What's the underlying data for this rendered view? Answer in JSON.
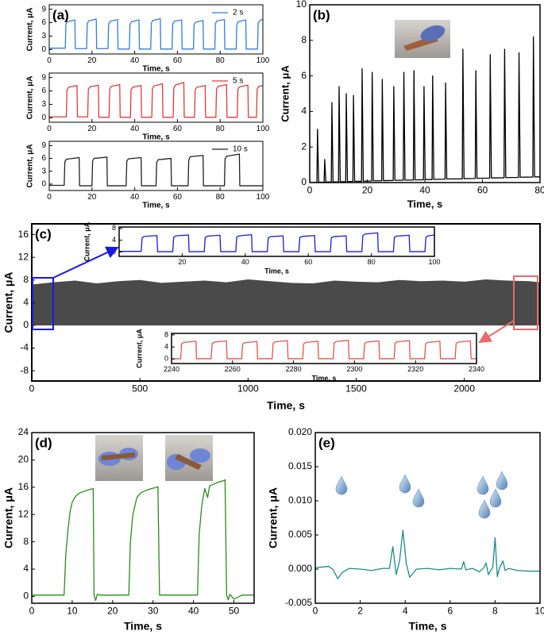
{
  "chart_data": [
    {
      "type": "line",
      "panel": "(a)",
      "xlabel": "Time, s",
      "ylabel": "Current, μA",
      "xlim": [
        0,
        100
      ],
      "ylim": [
        -1,
        10
      ],
      "xticks": [
        0,
        20,
        40,
        60,
        80,
        100
      ],
      "yticks": [
        0,
        3,
        6,
        9
      ],
      "legend": "upper right",
      "series": [
        {
          "name": "2 s",
          "color": "#2f7ed8",
          "x": [
            0,
            7.5,
            7.8,
            8.5,
            12,
            12.2,
            17.5,
            17.8,
            18.5,
            22,
            22.2,
            27.5,
            27.8,
            28.5,
            32,
            32.2,
            37.5,
            37.8,
            38.5,
            42,
            42.2,
            47.5,
            47.8,
            48.5,
            52,
            52.2,
            57.5,
            57.8,
            58.5,
            62,
            62.2,
            67.5,
            67.8,
            68.5,
            72,
            72.2,
            77.5,
            77.8,
            78.5,
            82,
            82.2,
            87.5,
            87.8,
            88.5,
            92,
            92.2,
            97.5,
            97.8,
            98.5,
            100
          ],
          "values": [
            0.3,
            0.3,
            5.6,
            6.2,
            6.6,
            0.2,
            0.2,
            5.8,
            6.4,
            6.8,
            0.2,
            0.2,
            5.7,
            6.3,
            6.7,
            0.1,
            0.1,
            5.6,
            6.2,
            6.6,
            0.1,
            0.1,
            5.9,
            6.5,
            6.9,
            0.1,
            0.1,
            5.7,
            6.3,
            6.6,
            0.1,
            0.1,
            5.5,
            6.1,
            6.5,
            0.1,
            0.1,
            5.8,
            6.4,
            6.7,
            0.1,
            0.1,
            5.6,
            6.2,
            6.6,
            0.1,
            0.1,
            5.9,
            6.4,
            6.8
          ]
        }
      ]
    },
    {
      "type": "line",
      "xlabel": "Time, s",
      "ylabel": "Current, μA",
      "xlim": [
        0,
        100
      ],
      "ylim": [
        -1,
        10
      ],
      "xticks": [
        0,
        20,
        40,
        60,
        80,
        100
      ],
      "yticks": [
        0,
        3,
        6,
        9
      ],
      "legend": "upper right",
      "series": [
        {
          "name": "5 s",
          "color": "#e0393e",
          "x": [
            0,
            8,
            8.3,
            9,
            13,
            13.2,
            18,
            18.3,
            19,
            23,
            23.2,
            28,
            28.3,
            29,
            33,
            33.2,
            38,
            38.3,
            39,
            43,
            43.2,
            48,
            48.3,
            49,
            53,
            53.2,
            58,
            58.3,
            59,
            63,
            63.2,
            68,
            68.3,
            69,
            73,
            73.2,
            78,
            78.3,
            79,
            83,
            83.2,
            88,
            88.3,
            89,
            93,
            93.2,
            97,
            97.3,
            98,
            100
          ],
          "values": [
            0.2,
            0.2,
            6.2,
            6.8,
            7.2,
            0.2,
            0.2,
            6.3,
            6.9,
            7.3,
            0.1,
            0.1,
            6.4,
            7.0,
            7.4,
            0.1,
            0.1,
            6.2,
            6.8,
            7.2,
            0.1,
            0.1,
            6.5,
            7.1,
            7.6,
            0.1,
            0.1,
            6.6,
            7.3,
            7.9,
            0.1,
            0.1,
            6.2,
            6.8,
            7.2,
            0.1,
            0.1,
            6.4,
            7.0,
            7.4,
            0.1,
            0.1,
            6.3,
            6.9,
            7.3,
            0.1,
            0.1,
            6.4,
            7.0,
            7.2
          ]
        }
      ]
    },
    {
      "type": "line",
      "xlabel": "Time, s",
      "ylabel": "Current, μA",
      "xlim": [
        0,
        100
      ],
      "ylim": [
        -1.5,
        10
      ],
      "xticks": [
        0,
        20,
        40,
        60,
        80,
        100
      ],
      "yticks": [
        0,
        3,
        6,
        9
      ],
      "legend": "upper right",
      "series": [
        {
          "name": "10 s",
          "color": "#222222",
          "x": [
            0,
            7,
            7.3,
            8,
            14,
            14.2,
            20,
            20.3,
            21,
            27,
            27.2,
            36,
            36.3,
            37,
            43,
            43.2,
            50,
            50.3,
            51,
            57,
            57.2,
            65,
            65.3,
            66,
            72,
            72.2,
            82,
            82.3,
            83,
            89,
            89.2,
            100
          ],
          "values": [
            -0.3,
            -0.3,
            5.2,
            5.8,
            6.2,
            -0.4,
            -0.4,
            5.4,
            6.0,
            6.3,
            -0.4,
            -0.4,
            5.3,
            5.9,
            6.2,
            -0.4,
            -0.4,
            5.1,
            5.7,
            6.0,
            -0.4,
            -0.4,
            5.6,
            6.4,
            6.7,
            -0.4,
            -0.4,
            5.9,
            6.5,
            7.0,
            -0.4,
            -0.4
          ]
        }
      ]
    },
    {
      "type": "line",
      "panel": "(b)",
      "xlabel": "Time, s",
      "ylabel": "Current, μA",
      "xlim": [
        0,
        80
      ],
      "ylim": [
        0,
        10
      ],
      "xticks": [
        0,
        20,
        40,
        60,
        80
      ],
      "yticks": [
        0,
        2,
        4,
        6,
        8,
        10
      ],
      "series": [
        {
          "color": "#000000",
          "x": [
            0,
            2.5,
            2.7,
            3.1,
            5,
            5.2,
            5.6,
            7.5,
            7.7,
            8.1,
            10,
            10.2,
            10.6,
            12.5,
            12.7,
            13.1,
            15,
            15.2,
            15.6,
            18,
            18.2,
            18.6,
            21.5,
            21.7,
            22.1,
            25,
            25.2,
            25.6,
            29,
            29.2,
            29.6,
            32.5,
            32.7,
            33.1,
            36,
            36.2,
            36.6,
            39.5,
            39.7,
            40.1,
            42.5,
            42.7,
            43.1,
            47,
            47.2,
            47.6,
            53,
            53.2,
            53.6,
            57.5,
            57.7,
            58.1,
            62.5,
            62.7,
            63.1,
            67.5,
            67.7,
            68.1,
            72.5,
            72.7,
            73.1,
            77.5,
            77.7,
            78.1,
            80
          ],
          "values": [
            0,
            0.01,
            3.0,
            0.02,
            0.02,
            1.3,
            0.03,
            0.03,
            4.5,
            0.04,
            0.04,
            5.4,
            0.05,
            0.05,
            5.0,
            0.06,
            0.06,
            4.9,
            0.07,
            0.07,
            6.4,
            0.08,
            0.09,
            6.2,
            0.1,
            0.1,
            5.8,
            0.11,
            0.12,
            5.4,
            0.13,
            0.13,
            6.2,
            0.14,
            0.14,
            6.3,
            0.15,
            0.16,
            5.4,
            0.17,
            0.17,
            6.0,
            0.18,
            0.19,
            5.6,
            0.2,
            0.21,
            7.5,
            0.22,
            0.23,
            6.3,
            0.24,
            0.25,
            7.2,
            0.26,
            0.27,
            7.5,
            0.28,
            0.29,
            7.3,
            0.3,
            0.31,
            8.2,
            0.32,
            0.32
          ]
        }
      ]
    },
    {
      "type": "area",
      "panel": "(c)",
      "xlabel": "Time, s",
      "ylabel": "Current, μA",
      "xlim": [
        0,
        2350
      ],
      "ylim": [
        -9.8,
        17.9
      ],
      "xticks": [
        0,
        500,
        1000,
        1500,
        2000
      ],
      "yticks": [
        -8,
        -4,
        0,
        4,
        8,
        12,
        16
      ],
      "series": [
        {
          "color": "#4a4a4a",
          "x": [
            0,
            100,
            200,
            300,
            400,
            500,
            600,
            700,
            800,
            900,
            1000,
            1100,
            1200,
            1300,
            1400,
            1500,
            1600,
            1700,
            1800,
            1900,
            2000,
            2100,
            2200,
            2300,
            2350
          ],
          "values": [
            7.2,
            7.6,
            7.9,
            7.4,
            7.8,
            8.0,
            7.5,
            7.7,
            7.9,
            7.6,
            8.1,
            7.8,
            7.5,
            7.4,
            7.9,
            7.7,
            7.6,
            8.0,
            7.8,
            7.9,
            7.7,
            8.1,
            7.9,
            7.8,
            7.6
          ]
        }
      ]
    },
    {
      "type": "line",
      "xlabel": "Time, s",
      "ylabel": "Current, μA",
      "xlim": [
        0,
        100
      ],
      "ylim": [
        -1.5,
        8.5
      ],
      "xticks": [
        20,
        40,
        60,
        80,
        100
      ],
      "yticks": [
        0,
        4,
        8
      ],
      "series": [
        {
          "color": "#1a1adc",
          "x": [
            0,
            7,
            7.3,
            8,
            12,
            12.2,
            17,
            17.3,
            18,
            22,
            22.2,
            27,
            27.3,
            28,
            32,
            32.2,
            37,
            37.3,
            38,
            42,
            42.2,
            47,
            47.3,
            48,
            52,
            52.2,
            57,
            57.3,
            58,
            62,
            62.2,
            67,
            67.3,
            68,
            72,
            72.2,
            77,
            77.3,
            78,
            82,
            82.2,
            87,
            87.3,
            88,
            92,
            92.2,
            97,
            97.3,
            98,
            100
          ],
          "values": [
            0.2,
            0.2,
            4.8,
            5.3,
            5.6,
            0.1,
            0.1,
            5.0,
            5.5,
            5.8,
            0.1,
            0.1,
            4.9,
            5.4,
            5.7,
            0.1,
            0.1,
            5.0,
            5.5,
            5.9,
            0.1,
            0.1,
            4.8,
            5.2,
            5.5,
            0.1,
            0.1,
            4.9,
            5.3,
            5.6,
            0.1,
            0.1,
            4.8,
            5.2,
            5.5,
            0.1,
            0.1,
            5.6,
            6.1,
            6.5,
            0.1,
            0.1,
            5.0,
            5.4,
            5.7,
            0.1,
            0.1,
            5.0,
            5.5,
            5.8
          ]
        }
      ]
    },
    {
      "type": "line",
      "xlabel": "Time, s",
      "ylabel": "Current, μA",
      "xlim": [
        2240,
        2340
      ],
      "ylim": [
        -1.5,
        8.5
      ],
      "xticks": [
        2240,
        2260,
        2280,
        2300,
        2320,
        2340
      ],
      "yticks": [
        0,
        4,
        8
      ],
      "series": [
        {
          "color": "#e85050",
          "x": [
            2240,
            2243,
            2243.3,
            2244,
            2248,
            2248.2,
            2253,
            2253.3,
            2254,
            2258,
            2258.2,
            2263,
            2263.3,
            2264,
            2268,
            2268.2,
            2273,
            2273.3,
            2274,
            2278,
            2278.2,
            2283,
            2283.3,
            2284,
            2288,
            2288.2,
            2293,
            2293.3,
            2294,
            2298,
            2298.2,
            2303,
            2303.3,
            2304,
            2308,
            2308.2,
            2313,
            2313.3,
            2314,
            2318,
            2318.2,
            2323,
            2323.3,
            2324,
            2328,
            2328.2,
            2333,
            2333.3,
            2334,
            2338,
            2338.2,
            2340
          ],
          "values": [
            0.1,
            0.1,
            5.0,
            5.5,
            5.9,
            0.1,
            0.1,
            5.1,
            5.6,
            6.0,
            0.1,
            0.1,
            4.9,
            5.4,
            5.8,
            0.1,
            0.1,
            5.2,
            5.7,
            6.1,
            0.1,
            0.1,
            5.0,
            5.5,
            5.9,
            0.1,
            0.1,
            5.3,
            5.8,
            6.2,
            0.1,
            0.1,
            5.1,
            5.6,
            6.0,
            0.1,
            0.1,
            5.2,
            5.7,
            6.1,
            0.1,
            0.1,
            5.0,
            5.5,
            5.9,
            0.1,
            0.1,
            5.1,
            5.6,
            6.0,
            0.1,
            0.1
          ]
        }
      ]
    },
    {
      "type": "line",
      "panel": "(d)",
      "xlabel": "Time, s",
      "ylabel": "Current, μA",
      "xlim": [
        0,
        55
      ],
      "ylim": [
        -1,
        24
      ],
      "xticks": [
        0,
        10,
        20,
        30,
        40,
        50
      ],
      "yticks": [
        0,
        4,
        8,
        12,
        16,
        20,
        24
      ],
      "series": [
        {
          "color": "#2a8c1e",
          "x": [
            0,
            8,
            8.4,
            9,
            9.5,
            10,
            11,
            12,
            14,
            15.2,
            15.4,
            15.8,
            16.2,
            17,
            24,
            24.4,
            25,
            26,
            27,
            29,
            31,
            31.2,
            31.6,
            32,
            41,
            41.4,
            42,
            42.3,
            42.8,
            43.5,
            44,
            46,
            47.6,
            47.8,
            48.2,
            48.6,
            49,
            50,
            52,
            55
          ],
          "values": [
            0.2,
            0.2,
            6,
            10,
            12.5,
            13.8,
            14.8,
            15.2,
            15.6,
            15.8,
            0.2,
            -0.6,
            0.3,
            0.2,
            0.2,
            8,
            12,
            14.5,
            15.2,
            15.7,
            16.0,
            16.1,
            0.2,
            0.2,
            0.2,
            9,
            13,
            14.2,
            15.8,
            14.5,
            16.2,
            16.7,
            17.0,
            17.1,
            0.2,
            -0.5,
            0.3,
            -0.4,
            0.2,
            0.2
          ]
        }
      ]
    },
    {
      "type": "line",
      "panel": "(e)",
      "xlabel": "Time, s",
      "ylabel": "Current, μA",
      "xlim": [
        0,
        10
      ],
      "ylim": [
        -0.005,
        0.02
      ],
      "xticks": [
        0,
        2,
        4,
        6,
        8,
        10
      ],
      "yticks": [
        -0.005,
        {
          "value": 0,
          "label": "0.000"
        },
        0.005,
        {
          "value": 0.01,
          "label": "0.010"
        },
        0.015,
        {
          "value": 0.02,
          "label": "0.020"
        }
      ],
      "series": [
        {
          "color": "#1d8c88",
          "x": [
            0,
            0.3,
            0.6,
            0.8,
            1.0,
            1.2,
            1.5,
            2.0,
            2.5,
            3.0,
            3.3,
            3.45,
            3.6,
            3.75,
            3.9,
            4.05,
            4.2,
            4.5,
            5.0,
            5.5,
            6.0,
            6.5,
            6.6,
            6.7,
            7.0,
            7.3,
            7.5,
            7.6,
            7.7,
            7.9,
            8.0,
            8.1,
            8.2,
            8.35,
            8.45,
            8.6,
            9.0,
            9.5,
            10
          ],
          "values": [
            0.0002,
            0.0003,
            0.0004,
            -0.0001,
            -0.0014,
            -0.0005,
            0.0001,
            0,
            -0.0002,
            0.0001,
            0.0001,
            0.0033,
            -0.0008,
            0.0012,
            0.0057,
            0.0008,
            -0.0012,
            0,
            0.0001,
            -0.0001,
            0.0001,
            0,
            0.0011,
            -0.0001,
            0.0001,
            -0.0004,
            0.0002,
            0.0009,
            -0.0008,
            0.0003,
            0.0046,
            -0.0011,
            0.0002,
            0.0012,
            -0.0002,
            0.0001,
            -0.0002,
            -0.0003,
            -0.0003
          ]
        }
      ]
    }
  ]
}
